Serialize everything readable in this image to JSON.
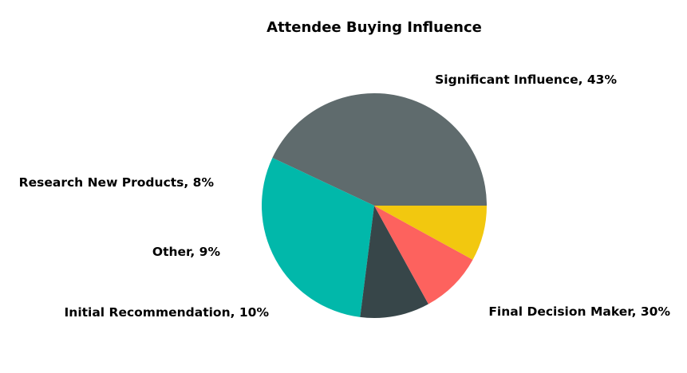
{
  "chart_data": {
    "type": "pie",
    "title": "Attendee Buying Influence",
    "slices": [
      {
        "label": "Significant Influence, 43%",
        "value": 43,
        "color": "#5f6b6d"
      },
      {
        "label": "Final Decision Maker, 30%",
        "value": 30,
        "color": "#01b8aa"
      },
      {
        "label": "Initial Recommendation, 10%",
        "value": 10,
        "color": "#374649"
      },
      {
        "label": "Other, 9%",
        "value": 9,
        "color": "#fd625e"
      },
      {
        "label": "Research New Products, 8%",
        "value": 8,
        "color": "#f2c80f"
      }
    ]
  }
}
